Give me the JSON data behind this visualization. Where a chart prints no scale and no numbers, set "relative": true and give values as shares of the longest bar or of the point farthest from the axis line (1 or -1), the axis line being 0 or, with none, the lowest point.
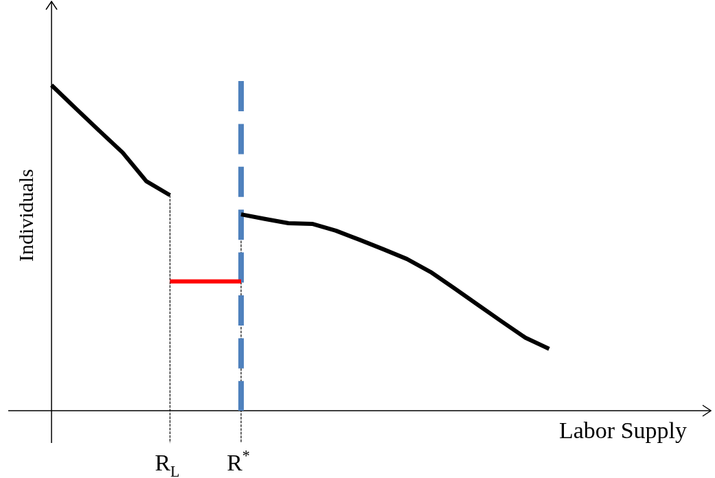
{
  "chart_data": {
    "type": "line",
    "relative": true,
    "xlabel": "Labor Supply",
    "ylabel": "Individuals",
    "tick_labels": "x",
    "marker": "none",
    "categories": [
      null,
      null,
      null,
      null,
      null,
      "R$_{L}$",
      null,
      null,
      "R$^{*}$",
      null,
      null,
      null,
      null,
      null,
      null,
      null,
      null,
      null,
      null,
      null,
      null,
      null
    ],
    "series": [
      {
        "color": "#000000",
        "values": [
          1.0,
          0.93,
          0.861,
          0.793,
          0.705,
          0.662,
          null,
          null,
          0.603,
          0.589,
          0.576,
          0.574,
          0.553,
          0.525,
          0.496,
          0.466,
          0.426,
          0.376,
          0.325,
          0.274,
          0.224,
          0.19
        ]
      },
      {
        "color": "#ff0000",
        "values": [
          null,
          null,
          null,
          null,
          null,
          0.397,
          0.397,
          0.397,
          0.397,
          null,
          null,
          null,
          null,
          null,
          null,
          null,
          null,
          null,
          null,
          null,
          null,
          null
        ]
      }
    ],
    "ref_lines": [
      {
        "axis": "x",
        "value": "R$_{L}$",
        "color": "#000000",
        "line_style": "dashed"
      },
      {
        "axis": "x",
        "value": "R$^{*}$",
        "color": "#000000",
        "line_style": "dashed"
      },
      {
        "axis": "x",
        "value": "R$^{*}$",
        "color": "#4f81bd",
        "line_style": "dashed"
      }
    ]
  }
}
